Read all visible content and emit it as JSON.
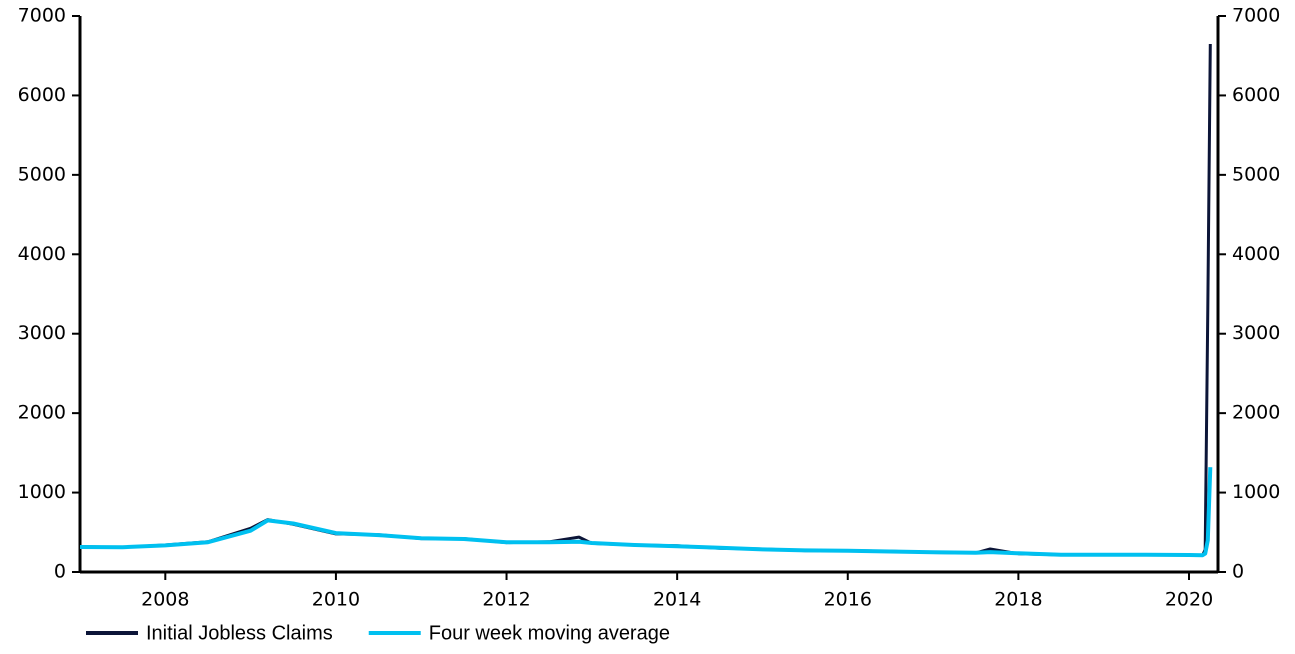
{
  "chart_data": {
    "type": "line",
    "x": [
      2007.0,
      2007.5,
      2008.0,
      2008.5,
      2009.0,
      2009.2,
      2009.5,
      2010.0,
      2010.5,
      2011.0,
      2011.5,
      2012.0,
      2012.5,
      2012.85,
      2013.0,
      2013.5,
      2014.0,
      2014.5,
      2015.0,
      2015.5,
      2016.0,
      2016.5,
      2017.0,
      2017.5,
      2017.67,
      2018.0,
      2018.5,
      2019.0,
      2019.5,
      2020.0,
      2020.16,
      2020.19,
      2020.22,
      2020.25
    ],
    "series": [
      {
        "name": "Initial Jobless Claims",
        "color": "#0c1538",
        "values": [
          320,
          310,
          340,
          380,
          550,
          660,
          600,
          480,
          470,
          420,
          420,
          370,
          380,
          440,
          360,
          340,
          330,
          300,
          290,
          270,
          270,
          260,
          245,
          240,
          290,
          230,
          215,
          220,
          215,
          215,
          211,
          282,
          3307,
          6648
        ]
      },
      {
        "name": "Four week moving average",
        "color": "#00c0f0",
        "values": [
          315,
          312,
          335,
          375,
          520,
          650,
          610,
          490,
          465,
          425,
          415,
          375,
          375,
          380,
          365,
          340,
          325,
          305,
          285,
          272,
          268,
          258,
          248,
          242,
          250,
          235,
          218,
          218,
          216,
          214,
          212,
          232,
          400,
          1320
        ]
      }
    ],
    "xlim": [
      2007.0,
      2020.34
    ],
    "xticks": [
      2008,
      2010,
      2012,
      2014,
      2016,
      2018,
      2020
    ],
    "ylim": [
      0,
      7000
    ],
    "yticks": [
      0,
      1000,
      2000,
      3000,
      4000,
      5000,
      6000,
      7000
    ],
    "y2lim": [
      0,
      7000
    ],
    "y2ticks": [
      0,
      1000,
      2000,
      3000,
      4000,
      5000,
      6000,
      7000
    ],
    "legend": "bottom-left"
  }
}
